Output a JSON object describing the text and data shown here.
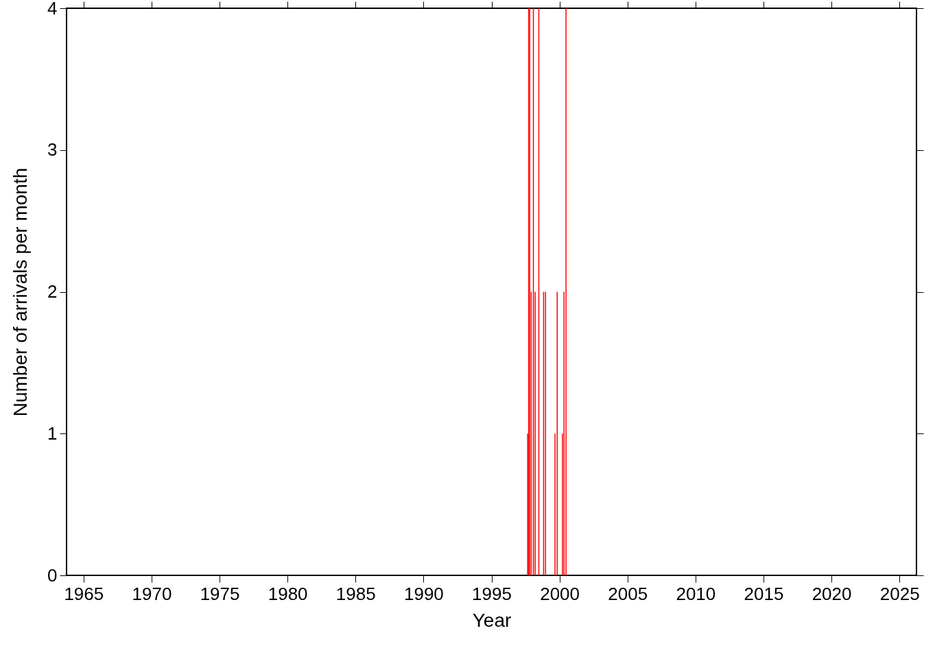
{
  "chart_data": {
    "type": "bar",
    "xlabel": "Year",
    "ylabel": "Number of arrivals per month",
    "x": [
      1997.66,
      1997.73,
      1997.81,
      1997.92,
      1998.08,
      1998.21,
      1998.48,
      1998.83,
      1998.97,
      1999.67,
      1999.83,
      2000.22,
      2000.33,
      2000.48
    ],
    "values": [
      1,
      4,
      4,
      2,
      4,
      2,
      4,
      2,
      2,
      1,
      2,
      1,
      2,
      4
    ],
    "color": "#ff0000",
    "xlim": [
      1964,
      2026
    ],
    "xticks": [
      1965,
      1970,
      1975,
      1980,
      1985,
      1990,
      1995,
      2000,
      2005,
      2010,
      2015,
      2020,
      2025
    ],
    "ylim": [
      0,
      4
    ],
    "yticks": [
      0,
      1,
      2,
      3,
      4
    ],
    "grid": false
  }
}
